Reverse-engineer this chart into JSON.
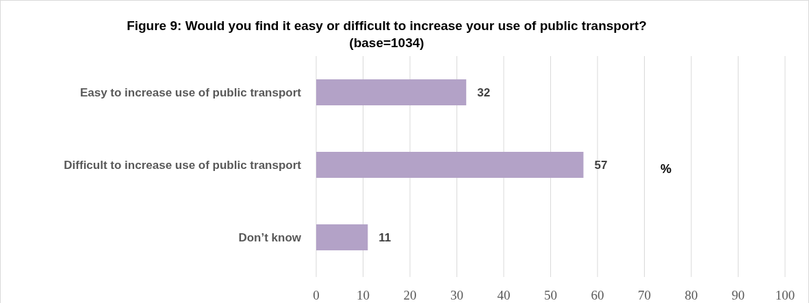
{
  "chart_data": {
    "type": "bar",
    "orientation": "horizontal",
    "title": "Figure 9:  Would you find it easy or difficult to increase your use of public transport?  (base=1034)",
    "categories": [
      "Easy to increase use of public transport",
      "Difficult to increase use of public transport",
      "Don’t know"
    ],
    "values": [
      32,
      57,
      11
    ],
    "color": "#b3a2c7",
    "data_labels": true,
    "xlim": [
      0,
      100
    ],
    "xticks": [
      0,
      10,
      20,
      30,
      40,
      50,
      60,
      70,
      80,
      90,
      100
    ],
    "grid": "x",
    "annotations": [
      "%"
    ]
  }
}
